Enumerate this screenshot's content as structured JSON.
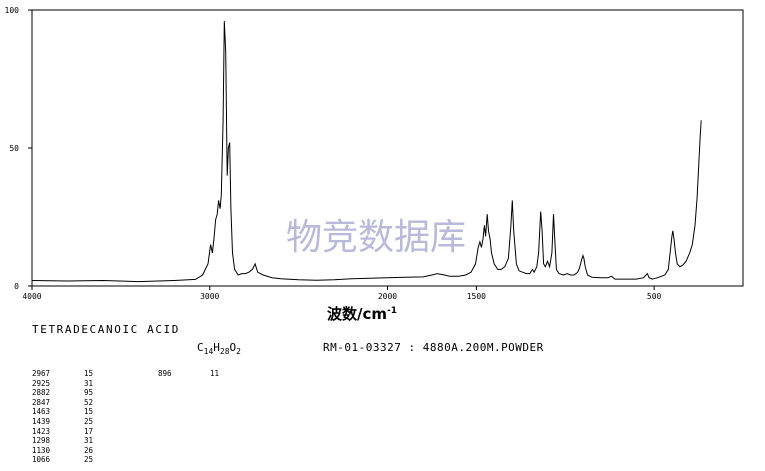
{
  "chart_data": {
    "type": "line",
    "title": "",
    "xlabel": "波数/cm",
    "xlabel_superscript": "-1",
    "ylabel": "",
    "xlim": [
      4000,
      0
    ],
    "ylim": [
      0,
      100
    ],
    "x_ticks": [
      {
        "value": 4000,
        "label": "4000"
      },
      {
        "value": 3000,
        "label": "3000"
      },
      {
        "value": 2000,
        "label": "2000"
      },
      {
        "value": 1500,
        "label": "1500"
      },
      {
        "value": 500,
        "label": "500"
      }
    ],
    "y_ticks": [
      {
        "value": 0,
        "label": "0"
      },
      {
        "value": 50,
        "label": "50"
      },
      {
        "value": 100,
        "label": "100"
      }
    ],
    "grid": false,
    "watermark": "物竞数据库",
    "series": [
      {
        "color": "#000000",
        "points": [
          [
            4000,
            2
          ],
          [
            3800,
            1.8
          ],
          [
            3600,
            2
          ],
          [
            3400,
            1.6
          ],
          [
            3200,
            2
          ],
          [
            3080,
            2.4
          ],
          [
            3040,
            4
          ],
          [
            3010,
            8
          ],
          [
            2995,
            15
          ],
          [
            2985,
            12
          ],
          [
            2975,
            18
          ],
          [
            2967,
            24
          ],
          [
            2958,
            26
          ],
          [
            2950,
            31
          ],
          [
            2942,
            28
          ],
          [
            2935,
            33
          ],
          [
            2925,
            60
          ],
          [
            2918,
            96
          ],
          [
            2910,
            85
          ],
          [
            2902,
            40
          ],
          [
            2895,
            50
          ],
          [
            2888,
            52
          ],
          [
            2881,
            28
          ],
          [
            2872,
            12
          ],
          [
            2860,
            6
          ],
          [
            2840,
            4
          ],
          [
            2820,
            4.5
          ],
          [
            2800,
            4.5
          ],
          [
            2780,
            5
          ],
          [
            2760,
            6
          ],
          [
            2745,
            8
          ],
          [
            2730,
            5
          ],
          [
            2700,
            4
          ],
          [
            2650,
            3
          ],
          [
            2600,
            2.6
          ],
          [
            2500,
            2.3
          ],
          [
            2400,
            2.1
          ],
          [
            2300,
            2.3
          ],
          [
            2200,
            2.6
          ],
          [
            2100,
            2.8
          ],
          [
            2000,
            3
          ],
          [
            1900,
            3.2
          ],
          [
            1800,
            3.3
          ],
          [
            1750,
            4
          ],
          [
            1720,
            4.5
          ],
          [
            1680,
            4
          ],
          [
            1650,
            3.5
          ],
          [
            1600,
            3.5
          ],
          [
            1560,
            4
          ],
          [
            1530,
            5
          ],
          [
            1505,
            8
          ],
          [
            1490,
            14
          ],
          [
            1480,
            16
          ],
          [
            1472,
            14
          ],
          [
            1463,
            17
          ],
          [
            1455,
            22
          ],
          [
            1448,
            18
          ],
          [
            1439,
            26
          ],
          [
            1432,
            20
          ],
          [
            1423,
            17
          ],
          [
            1415,
            12
          ],
          [
            1400,
            8
          ],
          [
            1380,
            6
          ],
          [
            1360,
            6
          ],
          [
            1340,
            7
          ],
          [
            1320,
            10
          ],
          [
            1306,
            22
          ],
          [
            1298,
            31
          ],
          [
            1290,
            20
          ],
          [
            1275,
            8
          ],
          [
            1260,
            5.5
          ],
          [
            1240,
            5
          ],
          [
            1220,
            4.5
          ],
          [
            1200,
            4.5
          ],
          [
            1185,
            6
          ],
          [
            1175,
            5
          ],
          [
            1160,
            7
          ],
          [
            1150,
            12
          ],
          [
            1138,
            27
          ],
          [
            1130,
            20
          ],
          [
            1122,
            8
          ],
          [
            1112,
            7
          ],
          [
            1100,
            9
          ],
          [
            1088,
            7
          ],
          [
            1075,
            12
          ],
          [
            1066,
            26
          ],
          [
            1058,
            16
          ],
          [
            1050,
            6
          ],
          [
            1035,
            4.5
          ],
          [
            1010,
            4
          ],
          [
            990,
            4.5
          ],
          [
            970,
            4
          ],
          [
            950,
            4
          ],
          [
            930,
            5
          ],
          [
            920,
            6.5
          ],
          [
            908,
            9.5
          ],
          [
            900,
            11
          ],
          [
            895,
            10
          ],
          [
            888,
            7
          ],
          [
            875,
            4
          ],
          [
            850,
            3.2
          ],
          [
            800,
            3
          ],
          [
            760,
            3
          ],
          [
            740,
            3.5
          ],
          [
            720,
            2.5
          ],
          [
            680,
            2.5
          ],
          [
            640,
            2.5
          ],
          [
            600,
            2.5
          ],
          [
            560,
            3
          ],
          [
            545,
            4
          ],
          [
            538,
            4.5
          ],
          [
            528,
            3
          ],
          [
            510,
            2.5
          ],
          [
            480,
            3
          ],
          [
            440,
            4
          ],
          [
            420,
            6
          ],
          [
            410,
            12
          ],
          [
            400,
            18
          ],
          [
            395,
            20
          ],
          [
            388,
            17
          ],
          [
            380,
            12
          ],
          [
            370,
            8
          ],
          [
            355,
            7
          ],
          [
            340,
            7.5
          ],
          [
            320,
            9
          ],
          [
            300,
            12
          ],
          [
            285,
            15
          ],
          [
            270,
            22
          ],
          [
            258,
            32
          ],
          [
            248,
            45
          ],
          [
            240,
            55
          ],
          [
            235,
            60
          ]
        ]
      }
    ]
  },
  "info": {
    "compound_name": "TETRADECANOIC ACID",
    "formula_parts": [
      {
        "t": "C",
        "sub": "14"
      },
      {
        "t": "H",
        "sub": "28"
      },
      {
        "t": "O",
        "sub": "2"
      }
    ],
    "spectrum_id": "RM-01-03327 : 4880A.200M.POWDER",
    "peak_table": [
      {
        "pos": "2967",
        "int": "15",
        "pos2": "896",
        "int2": "11"
      },
      {
        "pos": "2925",
        "int": "31",
        "pos2": "",
        "int2": ""
      },
      {
        "pos": "2882",
        "int": "95",
        "pos2": "",
        "int2": ""
      },
      {
        "pos": "2847",
        "int": "52",
        "pos2": "",
        "int2": ""
      },
      {
        "pos": "1463",
        "int": "15",
        "pos2": "",
        "int2": ""
      },
      {
        "pos": "1439",
        "int": "25",
        "pos2": "",
        "int2": ""
      },
      {
        "pos": "1423",
        "int": "17",
        "pos2": "",
        "int2": ""
      },
      {
        "pos": "1298",
        "int": "31",
        "pos2": "",
        "int2": ""
      },
      {
        "pos": "1130",
        "int": "26",
        "pos2": "",
        "int2": ""
      },
      {
        "pos": "1066",
        "int": "25",
        "pos2": "",
        "int2": ""
      }
    ]
  }
}
